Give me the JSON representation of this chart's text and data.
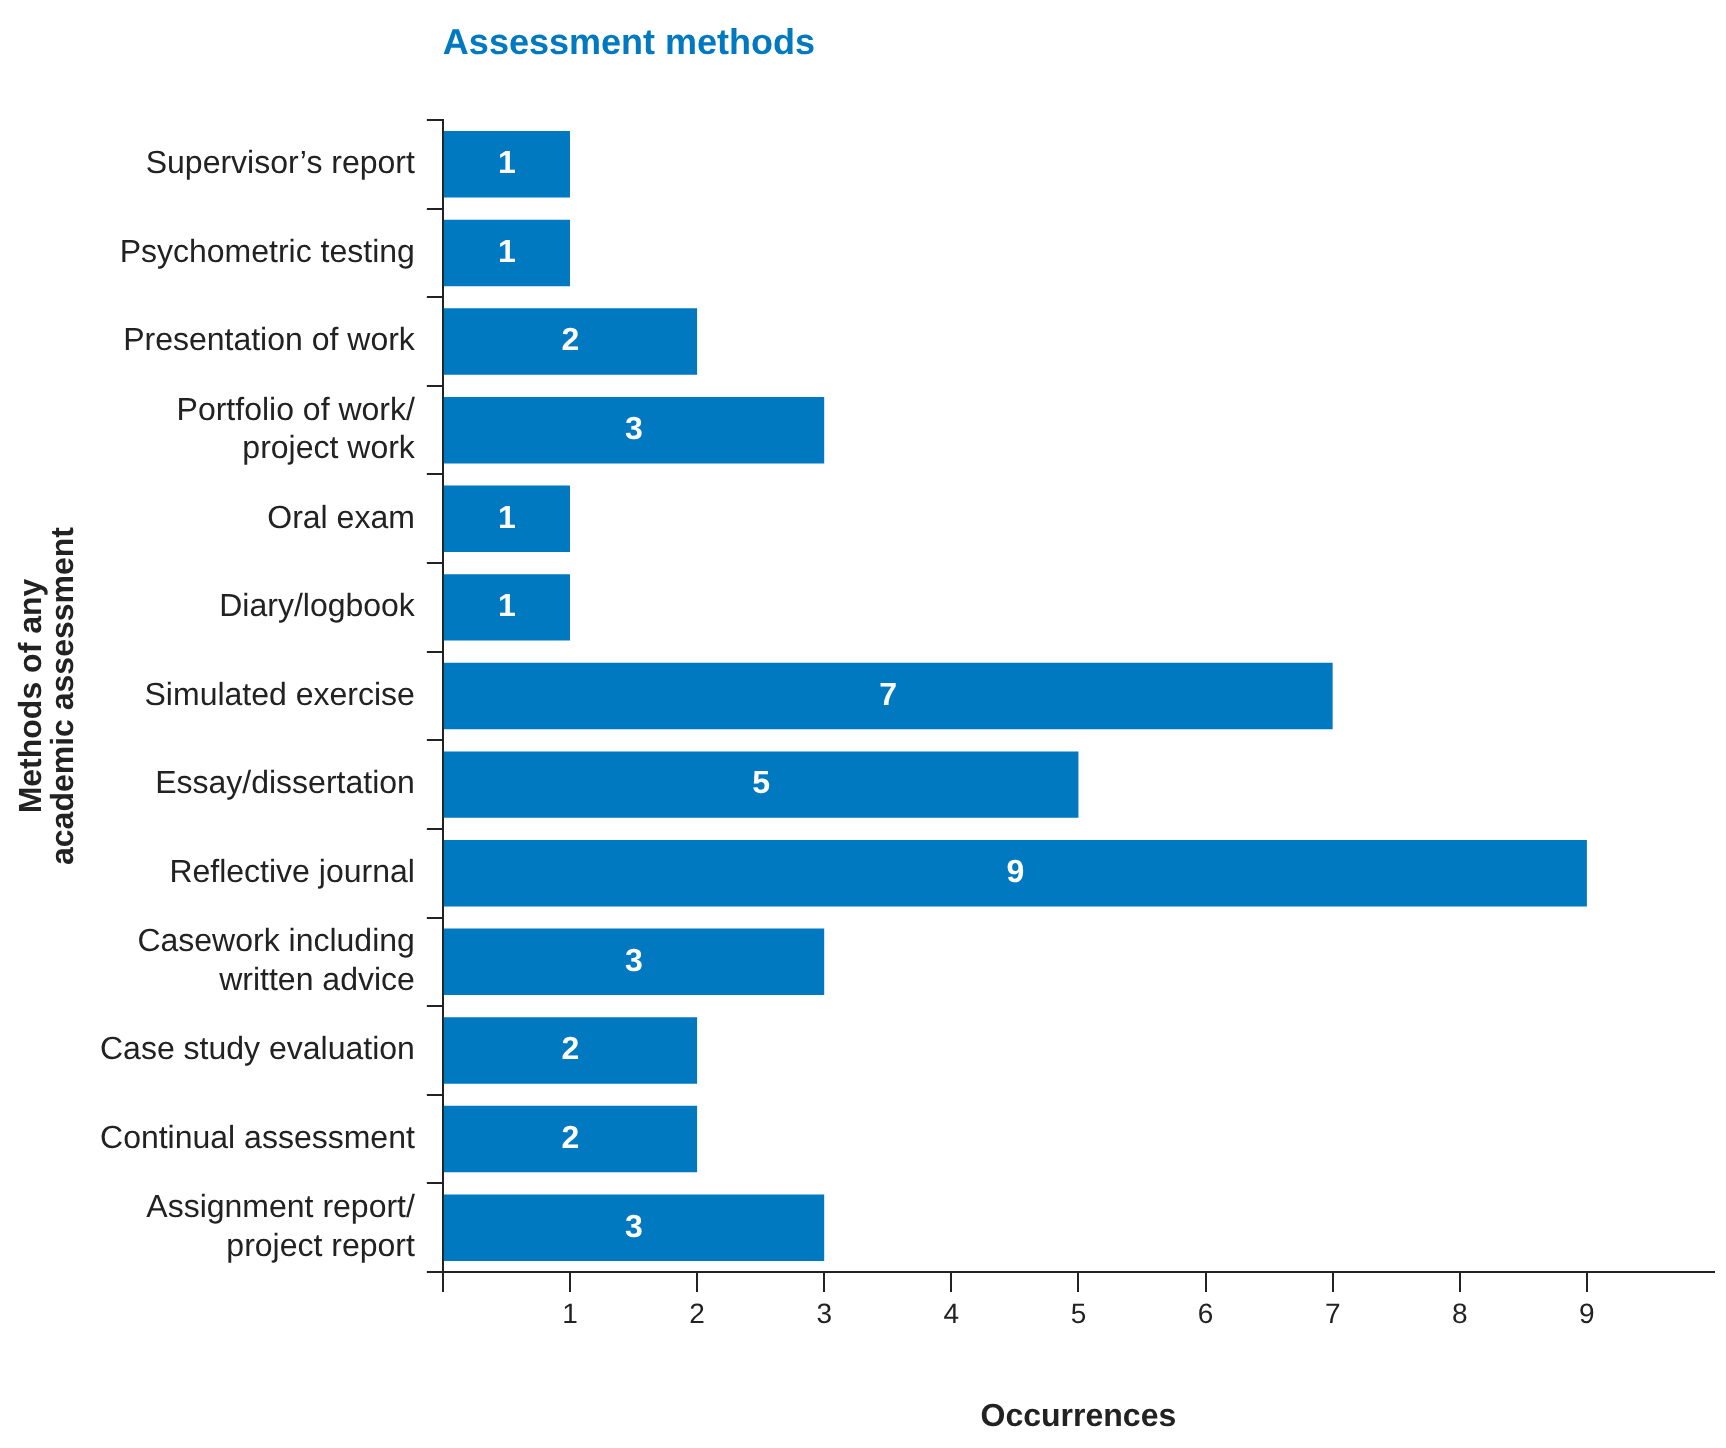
{
  "chart_data": {
    "type": "bar",
    "orientation": "horizontal",
    "title": "Assessment methods",
    "xlabel": "Occurrences",
    "ylabel": "Methods of any academic assessment",
    "categories": [
      "Supervisor’s report",
      "Psychometric testing",
      "Presentation of work",
      "Portfolio of work/ project work",
      "Oral exam",
      "Diary/logbook",
      "Simulated exercise",
      "Essay/dissertation",
      "Reflective journal",
      "Casework including written advice",
      "Case study evaluation",
      "Continual assessment",
      "Assignment report/ project report"
    ],
    "values": [
      1,
      1,
      2,
      3,
      1,
      1,
      7,
      5,
      9,
      3,
      2,
      2,
      3
    ],
    "color": "#0079c1",
    "xlim": [
      0,
      10
    ],
    "xticks": [
      {
        "value": 0,
        "label": null
      },
      1,
      2,
      3,
      4,
      5,
      6,
      7,
      8,
      9
    ],
    "data_labels": true,
    "grid": false,
    "legend": false
  }
}
